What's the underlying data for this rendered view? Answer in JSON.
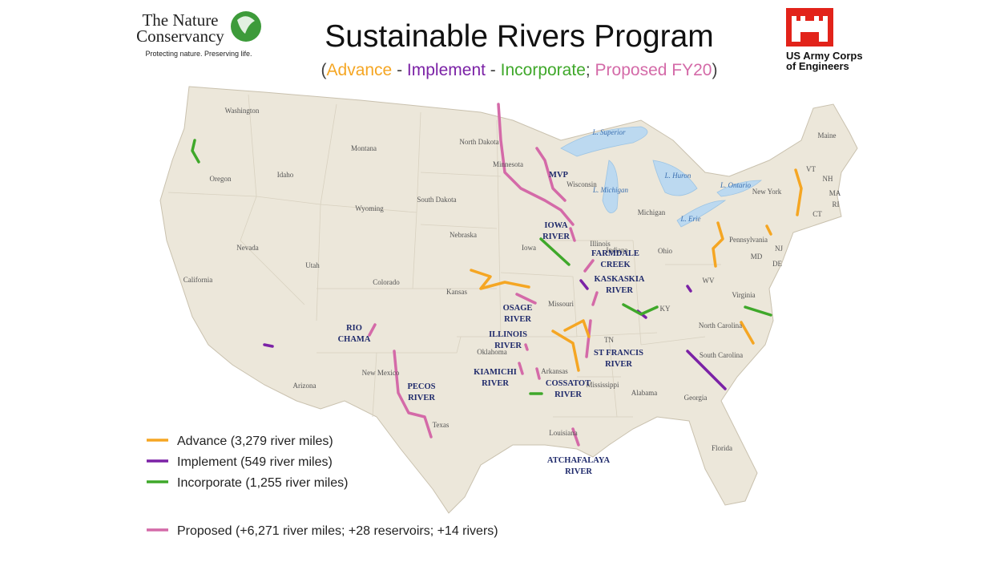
{
  "header": {
    "title": "Sustainable Rivers Program",
    "subtitle": [
      {
        "text": "(",
        "color": "#404040"
      },
      {
        "text": "Advance",
        "color": "#f5a623"
      },
      {
        "text": " - ",
        "color": "#404040"
      },
      {
        "text": "Implement",
        "color": "#7b22a6"
      },
      {
        "text": " - ",
        "color": "#404040"
      },
      {
        "text": "Incorporate",
        "color": "#3fa82a"
      },
      {
        "text": "; ",
        "color": "#404040"
      },
      {
        "text": "Proposed FY20",
        "color": "#d46aa8"
      },
      {
        "text": ")",
        "color": "#404040"
      }
    ]
  },
  "logos": {
    "tnc": {
      "name": [
        "The Nature",
        "Conservancy"
      ],
      "tagline": "Protecting nature. Preserving life."
    },
    "usace": {
      "name": [
        "US Army Corps",
        "of Engineers"
      ]
    }
  },
  "map": {
    "states": [
      "Washington",
      "Oregon",
      "California",
      "Idaho",
      "Nevada",
      "Montana",
      "Wyoming",
      "Utah",
      "Colorado",
      "Arizona",
      "New Mexico",
      "North Dakota",
      "South Dakota",
      "Nebraska",
      "Kansas",
      "Oklahoma",
      "Texas",
      "Minnesota",
      "Iowa",
      "Missouri",
      "Arkansas",
      "Louisiana",
      "Wisconsin",
      "Illinois",
      "Indiana",
      "Michigan",
      "Ohio",
      "KY",
      "TN",
      "Mississippi",
      "Alabama",
      "Georgia",
      "Florida",
      "South Carolina",
      "North Carolina",
      "Virginia",
      "WV",
      "Pennsylvania",
      "New York",
      "Maine",
      "VT",
      "NH",
      "MA",
      "RI",
      "CT",
      "NJ",
      "DE",
      "MD"
    ],
    "lakes": [
      "L. Superior",
      "L. Michigan",
      "L. Huron",
      "L. Ontario",
      "L. Erie"
    ],
    "rivers": [
      [
        "MVP"
      ],
      [
        "IOWA",
        "RIVER"
      ],
      [
        "FARMDALE",
        "CREEK"
      ],
      [
        "KASKASKIA",
        "RIVER"
      ],
      [
        "OSAGE",
        "RIVER"
      ],
      [
        "RIO",
        "CHAMA"
      ],
      [
        "ILLINOIS",
        "RIVER"
      ],
      [
        "ST FRANCIS",
        "RIVER"
      ],
      [
        "KIAMICHI",
        "RIVER"
      ],
      [
        "COSSATOT",
        "RIVER"
      ],
      [
        "PECOS",
        "RIVER"
      ],
      [
        "ATCHAFALAYA",
        "RIVER"
      ]
    ]
  },
  "legend": [
    {
      "label": "Advance (3,279 river miles)",
      "color": "#f5a623"
    },
    {
      "label": "Implement (549 river miles)",
      "color": "#7b22a6"
    },
    {
      "label": "Incorporate (1,255 river miles)",
      "color": "#3fa82a"
    },
    {
      "label": "Proposed (+6,271 river miles; +28 reservoirs; +14 rivers)",
      "color": "#d46aa8"
    }
  ]
}
